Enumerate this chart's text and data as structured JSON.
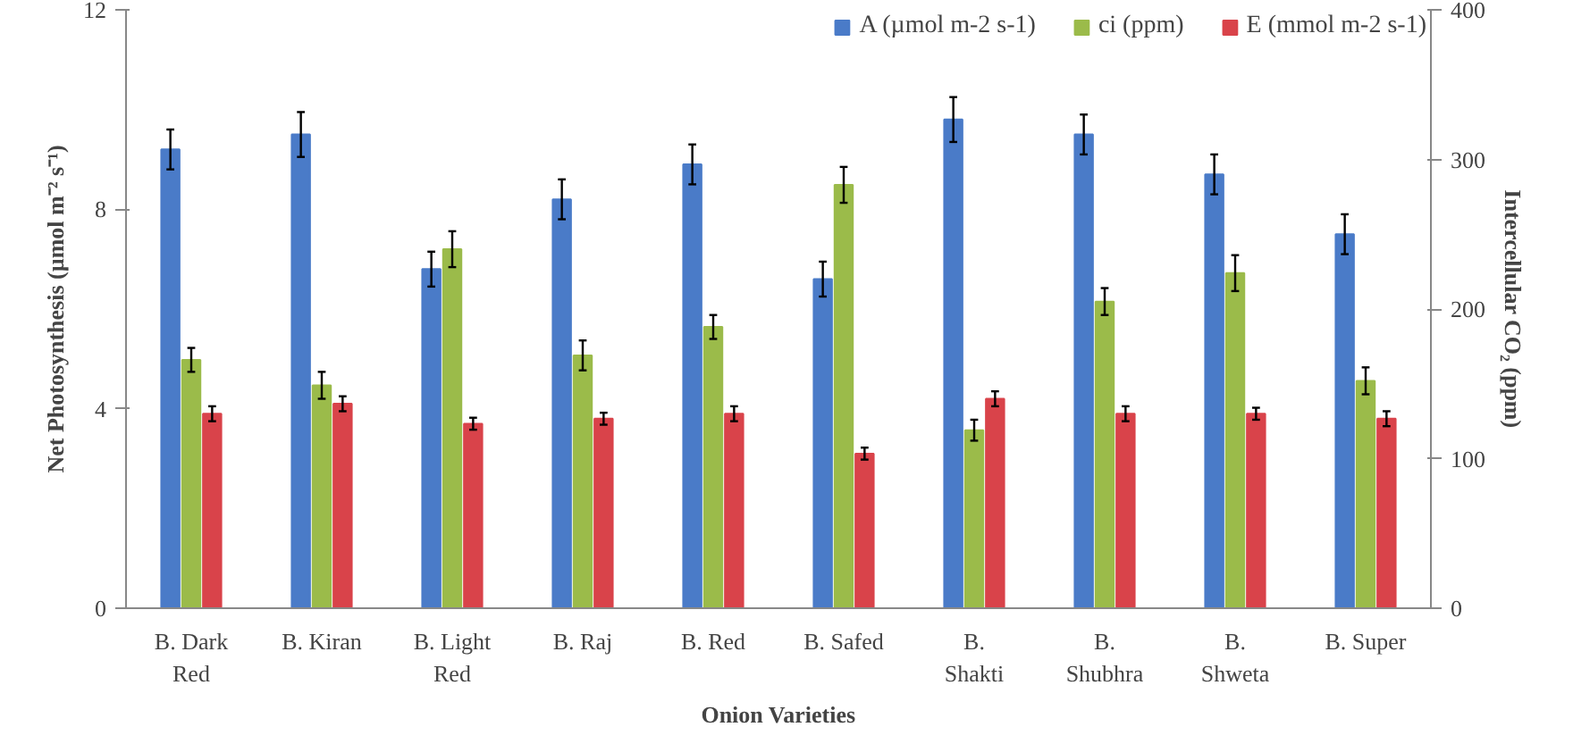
{
  "chart_data": {
    "type": "bar",
    "xlabel": "Onion Varieties",
    "ylabel": "Net Photosynthesis (µmol m⁻² s⁻¹)",
    "y2label": "Intercellular CO₂ (ppm)",
    "categories": [
      "B. Dark Red",
      "B. Kiran",
      "B. Light Red",
      "B. Raj",
      "B. Red",
      "B. Safed",
      "B. Shakti",
      "B. Shubhra",
      "B. Shweta",
      "B. Super"
    ],
    "series": [
      {
        "name": "A (µmol m-2 s-1)",
        "color": "#4a7bc8",
        "values": [
          9.2,
          9.5,
          6.8,
          8.2,
          8.9,
          6.6,
          9.8,
          9.5,
          8.7,
          7.5
        ],
        "errors": [
          0.4,
          0.45,
          0.35,
          0.4,
          0.4,
          0.35,
          0.45,
          0.4,
          0.4,
          0.4
        ]
      },
      {
        "name": "ci (ppm)",
        "color": "#9bbb4a",
        "axis": "y2",
        "values": [
          166,
          149,
          240,
          169,
          188,
          283,
          119,
          205,
          224,
          152
        ],
        "errors": [
          8,
          9,
          12,
          10,
          8,
          12,
          7,
          9,
          12,
          9
        ]
      },
      {
        "name": "E (mmol m-2 s-1)",
        "color": "#d9434a",
        "values": [
          3.9,
          4.1,
          3.7,
          3.8,
          3.9,
          3.1,
          4.2,
          3.9,
          3.9,
          3.8
        ],
        "errors": [
          0.15,
          0.15,
          0.12,
          0.12,
          0.15,
          0.12,
          0.15,
          0.15,
          0.12,
          0.15
        ]
      }
    ],
    "ylim": [
      0,
      12
    ],
    "yticks": [
      0,
      4,
      8,
      12
    ],
    "y2lim": [
      0,
      400
    ],
    "y2ticks": [
      0,
      100,
      200,
      300,
      400
    ],
    "grid": false,
    "legend": "top right"
  }
}
